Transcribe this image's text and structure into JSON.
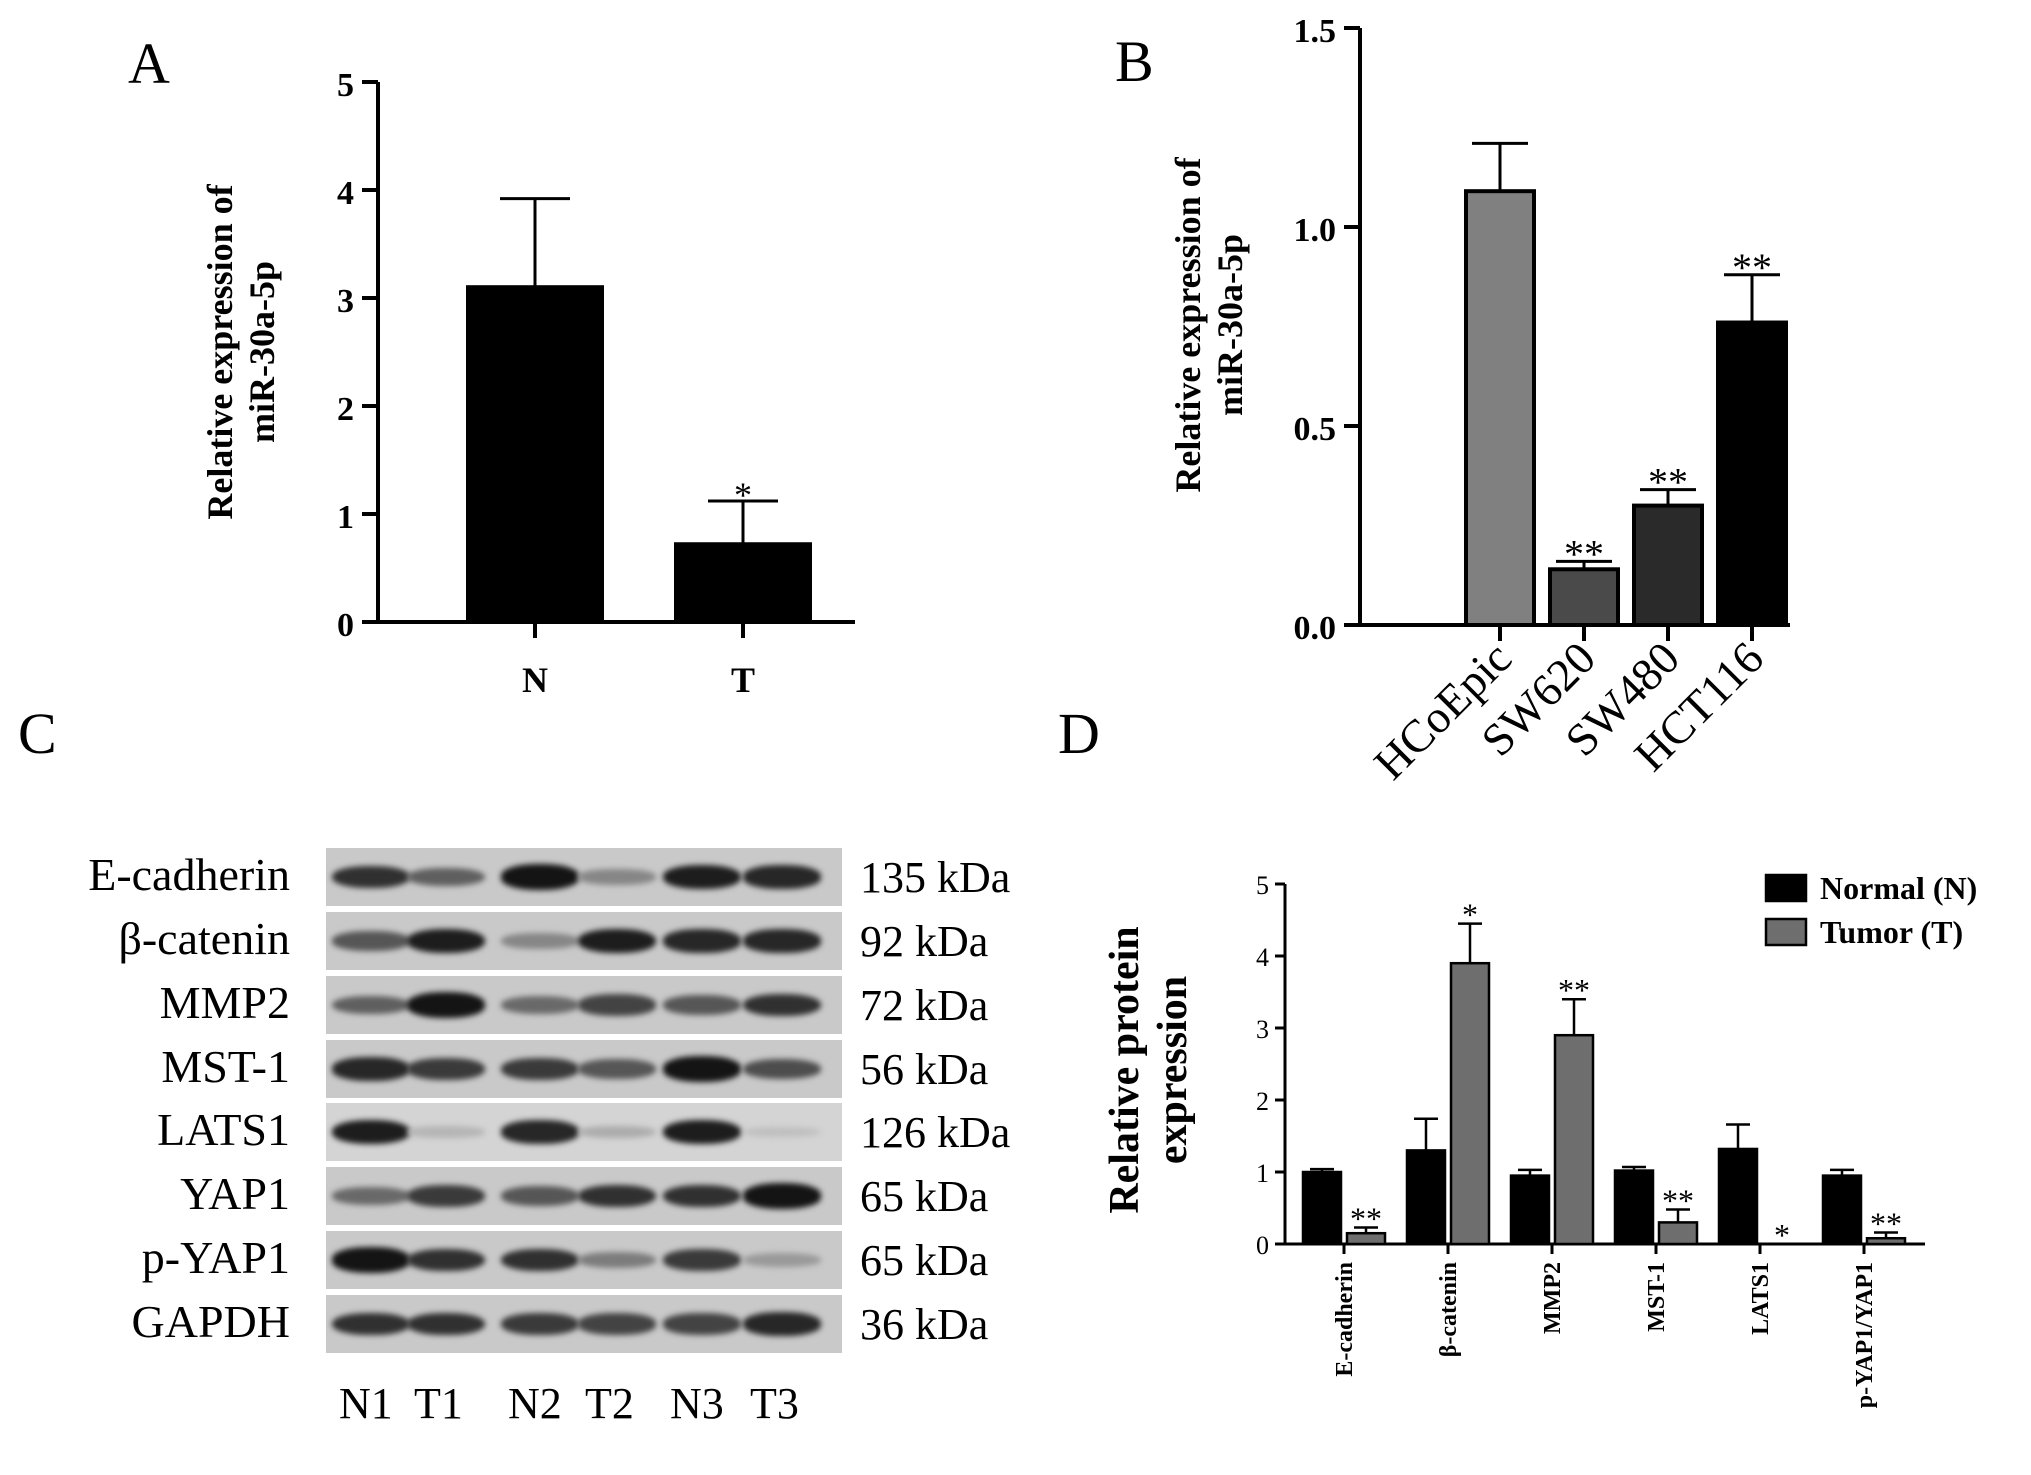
{
  "panels": {
    "A": "A",
    "B": "B",
    "C": "C",
    "D": "D"
  },
  "chart_data": [
    {
      "panel": "A",
      "type": "bar",
      "categories": [
        "N",
        "T"
      ],
      "values": [
        3.1,
        0.72
      ],
      "errors": [
        0.82,
        0.4
      ],
      "significance": [
        "",
        "*"
      ],
      "ylabel_line1": "Relative expression of",
      "ylabel_line2": "miR-30a-5p",
      "ylim": [
        0,
        5
      ],
      "yticks": [
        "0",
        "1",
        "2",
        "3",
        "4",
        "5"
      ],
      "colors": [
        "#000000",
        "#000000"
      ]
    },
    {
      "panel": "B",
      "type": "bar",
      "categories": [
        "HCoEpic",
        "SW620",
        "SW480",
        "HCT116"
      ],
      "values": [
        1.09,
        0.14,
        0.3,
        0.76
      ],
      "errors": [
        0.12,
        0.02,
        0.04,
        0.12
      ],
      "significance": [
        "",
        "**",
        "**",
        "**"
      ],
      "ylabel_line1": "Relative expression of",
      "ylabel_line2": "miR-30a-5p",
      "ylim": [
        0,
        1.5
      ],
      "yticks": [
        "0.0",
        "0.5",
        "1.0",
        "1.5"
      ],
      "colors": [
        "#808080",
        "#4a4a4a",
        "#2a2a2a",
        "#000000"
      ]
    },
    {
      "panel": "D",
      "type": "bar",
      "categories": [
        "E-cadherin",
        "β-catenin",
        "MMP2",
        "MST-1",
        "LATS1",
        "p-YAP1/YAP1"
      ],
      "series": [
        {
          "name": "Normal (N)",
          "color": "#000000",
          "values": [
            1.0,
            1.3,
            0.95,
            1.02,
            1.32,
            0.95
          ],
          "errors": [
            0.04,
            0.44,
            0.08,
            0.05,
            0.34,
            0.08
          ],
          "significance": [
            "",
            "",
            "",
            "",
            "",
            ""
          ]
        },
        {
          "name": "Tumor (T)",
          "color": "#6e6e6e",
          "values": [
            0.15,
            3.9,
            2.9,
            0.3,
            0.0,
            0.08
          ],
          "errors": [
            0.08,
            0.55,
            0.5,
            0.18,
            0.0,
            0.08
          ],
          "significance": [
            "**",
            "*",
            "**",
            "**",
            "*",
            "**"
          ]
        }
      ],
      "ylabel_line1": "Relative protein",
      "ylabel_line2": "expression",
      "ylim": [
        0,
        5
      ],
      "yticks": [
        "0",
        "1",
        "2",
        "3",
        "4",
        "5"
      ],
      "legend": "top-right"
    }
  ],
  "blot": {
    "proteins": [
      "E-cadherin",
      "β-catenin",
      "MMP2",
      "MST-1",
      "LATS1",
      "YAP1",
      "p-YAP1",
      "GAPDH"
    ],
    "sizes": [
      "135 kDa",
      "92 kDa",
      "72 kDa",
      "56 kDa",
      "126 kDa",
      "65 kDa",
      "65 kDa",
      "36 kDa"
    ],
    "lanes": [
      "N1",
      "T1",
      "N2",
      "T2",
      "N3",
      "T3"
    ],
    "band_intensity": [
      [
        0.8,
        0.55,
        0.95,
        0.35,
        0.9,
        0.85
      ],
      [
        0.6,
        0.9,
        0.35,
        0.9,
        0.85,
        0.85
      ],
      [
        0.55,
        0.95,
        0.5,
        0.7,
        0.6,
        0.8
      ],
      [
        0.85,
        0.75,
        0.75,
        0.6,
        0.95,
        0.65
      ],
      [
        0.9,
        0.1,
        0.85,
        0.15,
        0.9,
        0.05
      ],
      [
        0.5,
        0.75,
        0.6,
        0.8,
        0.8,
        0.95
      ],
      [
        0.95,
        0.8,
        0.8,
        0.4,
        0.75,
        0.25
      ],
      [
        0.8,
        0.8,
        0.75,
        0.7,
        0.7,
        0.85
      ]
    ]
  }
}
